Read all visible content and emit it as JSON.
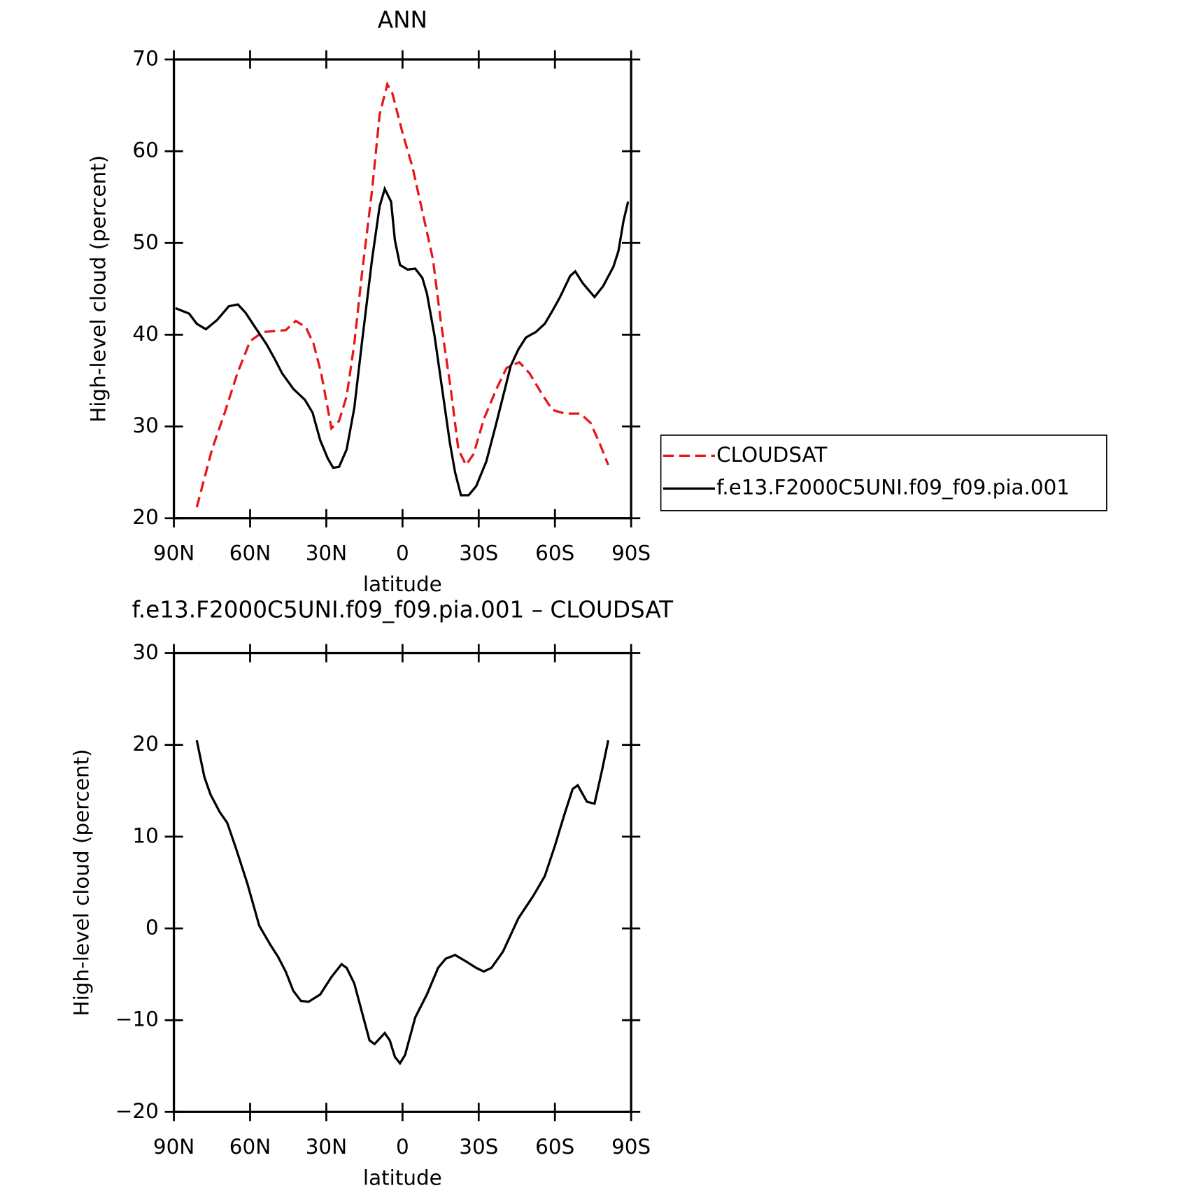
{
  "chart_data": [
    {
      "type": "line",
      "title": "ANN",
      "x_label": "latitude",
      "y_label": "High-level cloud (percent)",
      "xlim": [
        90,
        -90
      ],
      "ylim": [
        20,
        70
      ],
      "xticks": [
        {
          "value": 90,
          "label": "90N"
        },
        {
          "value": 60,
          "label": "60N"
        },
        {
          "value": 30,
          "label": "30N"
        },
        0,
        {
          "value": -30,
          "label": "30S"
        },
        {
          "value": -60,
          "label": "60S"
        },
        {
          "value": -90,
          "label": "90S"
        }
      ],
      "yticks": [
        20,
        30,
        40,
        50,
        60,
        70
      ],
      "legend": "right",
      "series": [
        {
          "name": "CLOUDSAT",
          "color": "#e8141c",
          "linestyle": "dashed",
          "x": [
            81,
            75,
            70,
            65,
            60,
            55,
            50,
            46,
            42,
            38,
            35,
            32,
            28,
            25,
            22,
            19,
            16,
            12,
            9,
            6,
            4,
            0,
            -4,
            -8,
            -12,
            -15,
            -19,
            -22,
            -25,
            -28,
            -32,
            -37,
            -41,
            -46,
            -50,
            -55,
            -59,
            -64,
            -70,
            -74,
            -78,
            -81
          ],
          "values": [
            21.2,
            27.5,
            31.5,
            35.8,
            39.3,
            40.3,
            40.4,
            40.5,
            41.5,
            40.8,
            39,
            35.8,
            29.8,
            30.6,
            33.3,
            39,
            46.6,
            55.7,
            64,
            67.3,
            66.3,
            62,
            58.2,
            53.2,
            48.2,
            41.6,
            34.1,
            27.5,
            25.8,
            27,
            30.8,
            34.1,
            36.4,
            37,
            35.8,
            33.5,
            31.8,
            31.4,
            31.4,
            30.4,
            27.9,
            25.8
          ]
        },
        {
          "name": "f.e13.F2000C5UNI.f09_f09.pia.001",
          "color": "#000000",
          "linestyle": "solid",
          "x": [
            89.4,
            84,
            81,
            77.4,
            73,
            68.4,
            64.8,
            61.8,
            58,
            53.4,
            50.4,
            47.4,
            43,
            38.4,
            35.4,
            32.4,
            29.4,
            27.3,
            25,
            22,
            19,
            16,
            12,
            9,
            7,
            4.5,
            3,
            1,
            -2,
            -5,
            -7.8,
            -9.6,
            -12.6,
            -15.6,
            -18.6,
            -20.7,
            -23,
            -26,
            -29,
            -33,
            -36.6,
            -39.6,
            -42.6,
            -45.6,
            -48.6,
            -52.5,
            -56,
            -59,
            -62,
            -66,
            -68,
            -71,
            -75.6,
            -79,
            -83,
            -85,
            -87,
            -88.8
          ],
          "values": [
            42.9,
            42.3,
            41.2,
            40.6,
            41.6,
            43.1,
            43.3,
            42.4,
            40.8,
            38.9,
            37.4,
            35.8,
            34.1,
            32.9,
            31.5,
            28.5,
            26.5,
            25.5,
            25.6,
            27.5,
            32,
            39.1,
            48.2,
            54,
            55.9,
            54.5,
            50.3,
            47.6,
            47.1,
            47.2,
            46.2,
            44.5,
            39.9,
            34.1,
            28.3,
            25,
            22.5,
            22.5,
            23.5,
            26.2,
            30,
            33.3,
            36.6,
            38.4,
            39.7,
            40.3,
            41.2,
            42.6,
            44.1,
            46.4,
            46.9,
            45.6,
            44.1,
            45.3,
            47.4,
            49.1,
            52.4,
            54.5
          ]
        }
      ]
    },
    {
      "type": "line",
      "title": "f.e13.F2000C5UNI.f09_f09.pia.001 – CLOUDSAT",
      "x_label": "latitude",
      "y_label": "High-level cloud (percent)",
      "xlim": [
        90,
        -90
      ],
      "ylim": [
        -20,
        30
      ],
      "xticks": [
        {
          "value": 90,
          "label": "90N"
        },
        {
          "value": 60,
          "label": "60N"
        },
        {
          "value": 30,
          "label": "30N"
        },
        0,
        {
          "value": -30,
          "label": "30S"
        },
        {
          "value": -60,
          "label": "60S"
        },
        {
          "value": -90,
          "label": "90S"
        }
      ],
      "yticks": [
        {
          "value": -20,
          "label": "−20"
        },
        {
          "value": -10,
          "label": "−10"
        },
        0,
        10,
        20,
        30
      ],
      "series": [
        {
          "color": "#000000",
          "linestyle": "solid",
          "x": [
            81,
            78,
            75.6,
            72,
            69,
            65.4,
            61,
            56.4,
            52,
            49,
            46,
            43,
            40,
            37,
            32.4,
            28,
            24,
            22,
            19,
            16,
            13,
            11,
            7,
            5,
            3,
            1,
            -1,
            -5,
            -9.6,
            -14,
            -17,
            -20.7,
            -25,
            -29,
            -32,
            -35,
            -39.6,
            -45.6,
            -51.6,
            -56,
            -60,
            -63.6,
            -67,
            -69,
            -72.6,
            -75.6,
            -78.6,
            -81
          ],
          "values": [
            20.5,
            16.5,
            14.6,
            12.7,
            11.5,
            8.6,
            4.8,
            0.3,
            -1.8,
            -3.1,
            -4.7,
            -6.8,
            -7.9,
            -8,
            -7.2,
            -5.3,
            -3.9,
            -4.3,
            -6,
            -9.1,
            -12.2,
            -12.6,
            -11.4,
            -12.2,
            -14,
            -14.7,
            -13.8,
            -9.7,
            -7.2,
            -4.3,
            -3.3,
            -2.9,
            -3.6,
            -4.3,
            -4.7,
            -4.3,
            -2.5,
            1.1,
            3.6,
            5.7,
            9,
            12.3,
            15.2,
            15.6,
            13.8,
            13.6,
            17.3,
            20.5
          ]
        }
      ]
    }
  ]
}
